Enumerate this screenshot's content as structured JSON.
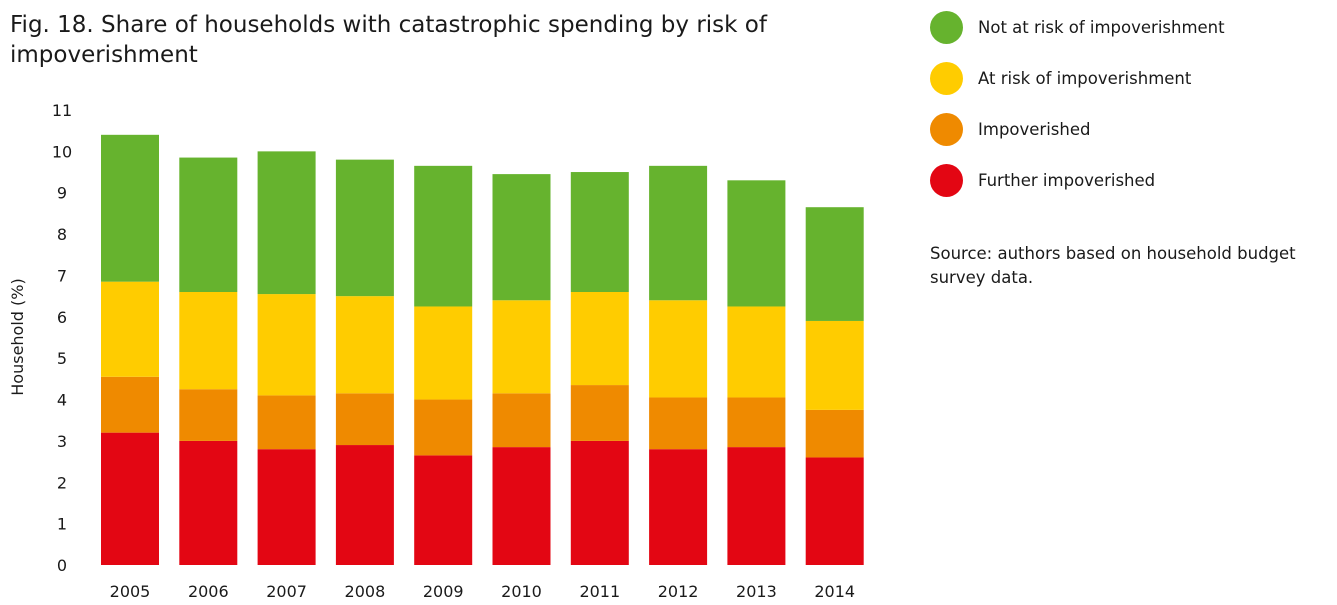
{
  "title": "Fig. 18. Share of households with catastrophic spending by risk of impoverishment",
  "source": "Source: authors based on household budget survey data.",
  "chart_data": {
    "type": "bar",
    "stacked": true,
    "categories": [
      "2005",
      "2006",
      "2007",
      "2008",
      "2009",
      "2010",
      "2011",
      "2012",
      "2013",
      "2014"
    ],
    "ylabel": "Household (%)",
    "xlabel": "",
    "ylim": [
      0,
      11
    ],
    "yticks": [
      "0",
      "1",
      "2",
      "3",
      "4",
      "5",
      "6",
      "7",
      "8",
      "9",
      "10",
      "11"
    ],
    "grid": false,
    "legend_position": "top-right",
    "series": [
      {
        "name": "Further impoverished",
        "color": "#e30613",
        "values": [
          3.2,
          3.0,
          2.8,
          2.9,
          2.65,
          2.85,
          3.0,
          2.8,
          2.85,
          2.6
        ]
      },
      {
        "name": "Impoverished",
        "color": "#ef8a00",
        "values": [
          1.35,
          1.25,
          1.3,
          1.25,
          1.35,
          1.3,
          1.35,
          1.25,
          1.2,
          1.15
        ]
      },
      {
        "name": "At risk of impoverishment",
        "color": "#ffcc00",
        "values": [
          2.3,
          2.35,
          2.45,
          2.35,
          2.25,
          2.25,
          2.25,
          2.35,
          2.2,
          2.15
        ]
      },
      {
        "name": "Not at risk of impoverishment",
        "color": "#66b32e",
        "values": [
          3.55,
          3.25,
          3.45,
          3.3,
          3.4,
          3.05,
          2.9,
          3.25,
          3.05,
          2.75
        ]
      }
    ]
  }
}
